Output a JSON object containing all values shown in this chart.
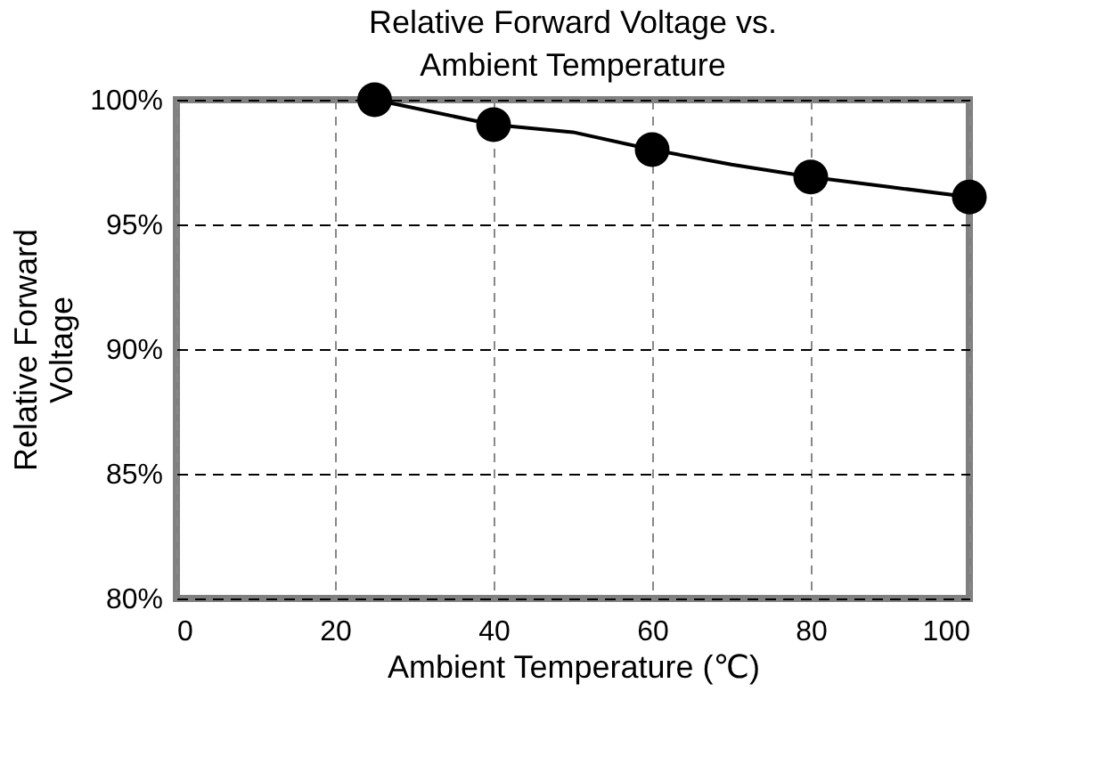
{
  "chart_data": {
    "type": "line",
    "title": "Relative Forward Voltage vs.\nAmbient Temperature",
    "xlabel": "Ambient Temperature (℃)",
    "ylabel": "Relative Forward\nVoltage",
    "series": [
      {
        "color": "#000000",
        "x": [
          25,
          40,
          50,
          60,
          70,
          80,
          90,
          100
        ],
        "values": [
          100,
          99,
          98.7,
          98,
          97.4,
          96.9,
          96.5,
          96.1
        ]
      },
      {
        "type": "scatter",
        "marker": "circle",
        "color": "#000000",
        "x": [
          25,
          40,
          60,
          80,
          100
        ],
        "values": [
          100,
          99,
          98,
          96.9,
          96.1
        ]
      }
    ],
    "line_style": "solid",
    "xlim": [
      0,
      100
    ],
    "xticks": [
      0,
      20,
      40,
      60,
      80,
      100
    ],
    "ylim": [
      80,
      100
    ],
    "yticks": [
      {
        "value": 80,
        "label": "80%"
      },
      {
        "value": 85,
        "label": "85%"
      },
      {
        "value": 90,
        "label": "90%"
      },
      {
        "value": 95,
        "label": "95%"
      },
      {
        "value": 100,
        "label": "100%"
      }
    ],
    "grid": true
  }
}
